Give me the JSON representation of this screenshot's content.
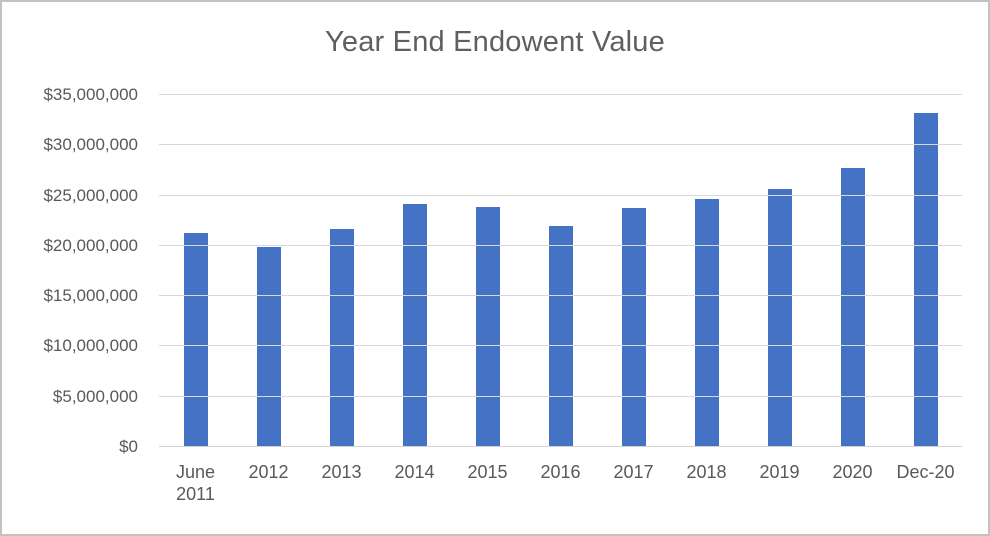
{
  "window": {
    "background": "#ffffff",
    "border_color": "#c2c2c2"
  },
  "chart_data": {
    "type": "bar",
    "title": "Year End Endowent Value",
    "categories": [
      "June 2011",
      "2012",
      "2013",
      "2014",
      "2015",
      "2016",
      "2017",
      "2018",
      "2019",
      "2020",
      "Dec-20"
    ],
    "values": [
      21300000,
      19900000,
      21700000,
      24200000,
      23900000,
      22000000,
      23800000,
      24700000,
      25700000,
      27700000,
      33200000
    ],
    "xlabel": "",
    "ylabel": "",
    "ylim": [
      0,
      35000000
    ],
    "ytick_step": 5000000,
    "ytick_labels": [
      "$0",
      "$5,000,000",
      "$10,000,000",
      "$15,000,000",
      "$20,000,000",
      "$25,000,000",
      "$30,000,000",
      "$35,000,000"
    ],
    "grid": true,
    "legend_position": "none",
    "bar_color": "#4472C4",
    "gridline_color": "#D9D9D9",
    "axis_line_color": "#D2D2D2",
    "text_color": "#595959",
    "title_color": "#5f5f5f"
  }
}
